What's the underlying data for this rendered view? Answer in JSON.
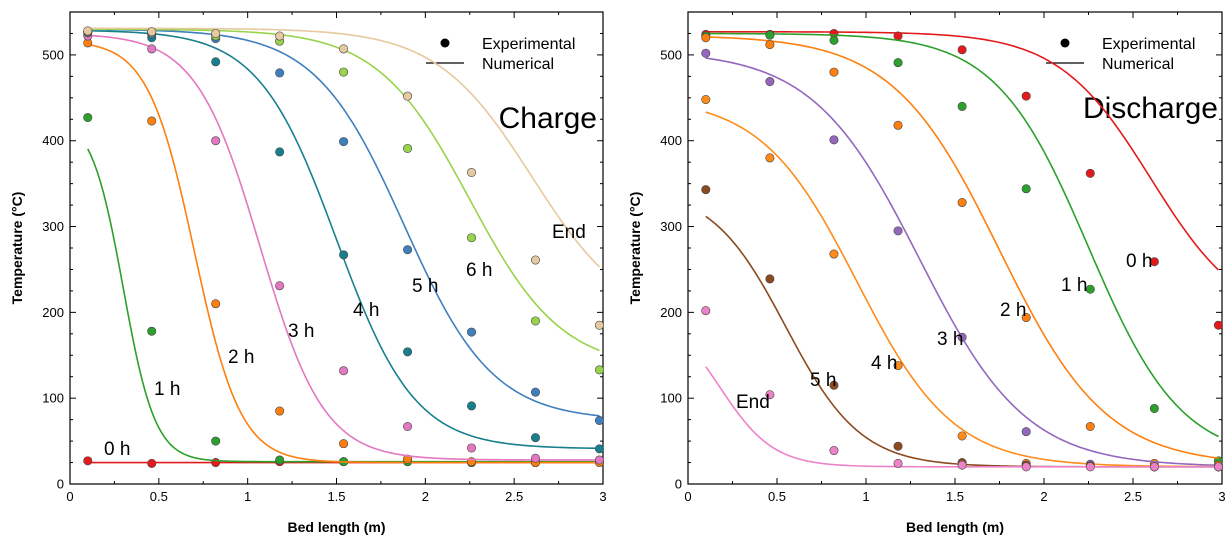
{
  "chart_data": [
    {
      "type": "line",
      "title": "Charge",
      "xlabel": "Bed length (m)",
      "ylabel": "Temperature (°C)",
      "xlim": [
        0,
        3
      ],
      "ylim": [
        0,
        550
      ],
      "xticks": [
        "0",
        "0.5",
        "1",
        "1.5",
        "2",
        "2.5",
        "3"
      ],
      "yticks": [
        "0",
        "100",
        "200",
        "300",
        "400",
        "500"
      ],
      "legend": {
        "position": "top-right",
        "markers": "Experimental",
        "lines": "Numerical"
      },
      "x_experimental": [
        0.1,
        0.46,
        0.82,
        1.18,
        1.54,
        1.9,
        2.26,
        2.62,
        2.98
      ],
      "series": [
        {
          "label": "0 h",
          "color": "#e31a1c",
          "experimental": [
            27,
            24,
            25,
            26,
            26,
            26,
            25,
            25,
            26
          ],
          "numerical": {
            "type": "flat",
            "value": 25
          }
        },
        {
          "label": "1 h",
          "color": "#2ca02c",
          "experimental": [
            427,
            178,
            50,
            28,
            26,
            26,
            25,
            25,
            26
          ],
          "numerical": {
            "type": "sigmoid",
            "mid": 0.3,
            "width": 0.09
          }
        },
        {
          "label": "2 h",
          "color": "#ff7f0e",
          "experimental": [
            514,
            423,
            210,
            85,
            47,
            29,
            26,
            25,
            25
          ],
          "numerical": {
            "type": "sigmoid",
            "mid": 0.7,
            "width": 0.13
          }
        },
        {
          "label": "3 h",
          "color": "#e377c2",
          "experimental": [
            522,
            507,
            400,
            231,
            132,
            67,
            42,
            30,
            28
          ],
          "numerical": {
            "type": "sigmoid",
            "mid": 1.07,
            "width": 0.18
          }
        },
        {
          "label": "4 h",
          "color": "#17808e",
          "experimental": [
            526,
            520,
            492,
            387,
            267,
            154,
            91,
            54,
            41
          ],
          "numerical": {
            "type": "sigmoid",
            "mid": 1.5,
            "width": 0.22
          }
        },
        {
          "label": "5 h",
          "color": "#3f7fbf",
          "experimental": [
            527,
            524,
            519,
            479,
            399,
            273,
            177,
            107,
            74
          ],
          "numerical": {
            "type": "sigmoid",
            "mid": 1.88,
            "width": 0.25
          }
        },
        {
          "label": "6 h",
          "color": "#98d44b",
          "experimental": [
            527,
            526,
            522,
            516,
            480,
            391,
            287,
            190,
            133
          ],
          "numerical": {
            "type": "sigmoid",
            "mid": 2.25,
            "width": 0.26
          }
        },
        {
          "label": "End",
          "color": "#e7c9a0",
          "experimental": [
            528,
            527,
            525,
            522,
            507,
            452,
            363,
            261,
            185
          ],
          "numerical": {
            "type": "sigmoid",
            "mid": 2.6,
            "width": 0.27
          }
        }
      ]
    },
    {
      "type": "line",
      "title": "Discharge",
      "xlabel": "Bed length (m)",
      "ylabel": "Temperature (°C)",
      "xlim": [
        0,
        3
      ],
      "ylim": [
        0,
        550
      ],
      "xticks": [
        "0",
        "0.5",
        "1",
        "1.5",
        "2",
        "2.5",
        "3"
      ],
      "yticks": [
        "0",
        "100",
        "200",
        "300",
        "400",
        "500"
      ],
      "legend": {
        "position": "top-right",
        "markers": "Experimental",
        "lines": "Numerical"
      },
      "x_experimental": [
        0.1,
        0.46,
        0.82,
        1.18,
        1.54,
        1.9,
        2.26,
        2.62,
        2.98
      ],
      "series": [
        {
          "label": "0 h",
          "color": "#e31a1c",
          "experimental": [
            524,
            524,
            525,
            522,
            506,
            452,
            362,
            259,
            185
          ],
          "numerical": {
            "type": "sigmoid",
            "mid": 2.6,
            "width": 0.26
          }
        },
        {
          "label": "1 h",
          "color": "#2ca02c",
          "experimental": [
            522,
            523,
            517,
            491,
            440,
            344,
            227,
            88,
            27
          ],
          "numerical": {
            "type": "sigmoid",
            "mid": 2.25,
            "width": 0.26
          }
        },
        {
          "label": "2 h",
          "color": "#ff7f0e",
          "experimental": [
            520,
            512,
            480,
            418,
            328,
            194,
            67,
            24,
            22
          ],
          "numerical": {
            "type": "sigmoid",
            "mid": 1.75,
            "width": 0.3
          }
        },
        {
          "label": "3 h",
          "color": "#9467bd",
          "experimental": [
            502,
            469,
            401,
            295,
            171,
            61,
            23,
            20,
            20
          ],
          "numerical": {
            "type": "sigmoid",
            "mid": 1.3,
            "width": 0.3
          }
        },
        {
          "label": "4 h",
          "color": "#ff8c1a",
          "experimental": [
            448,
            380,
            268,
            138,
            56,
            24,
            21,
            20,
            20
          ],
          "numerical": {
            "type": "sigmoid",
            "mid": 0.95,
            "width": 0.27
          }
        },
        {
          "label": "5 h",
          "color": "#8c4a1f",
          "experimental": [
            343,
            239,
            115,
            44,
            25,
            22,
            21,
            20,
            20
          ],
          "numerical": {
            "type": "sigmoid",
            "mid": 0.55,
            "width": 0.21
          }
        },
        {
          "label": "End",
          "color": "#ee82c9",
          "experimental": [
            202,
            104,
            39,
            24,
            22,
            20,
            20,
            20,
            20
          ],
          "numerical": {
            "type": "sigmoid",
            "mid": 0.18,
            "width": 0.15
          }
        }
      ]
    }
  ]
}
